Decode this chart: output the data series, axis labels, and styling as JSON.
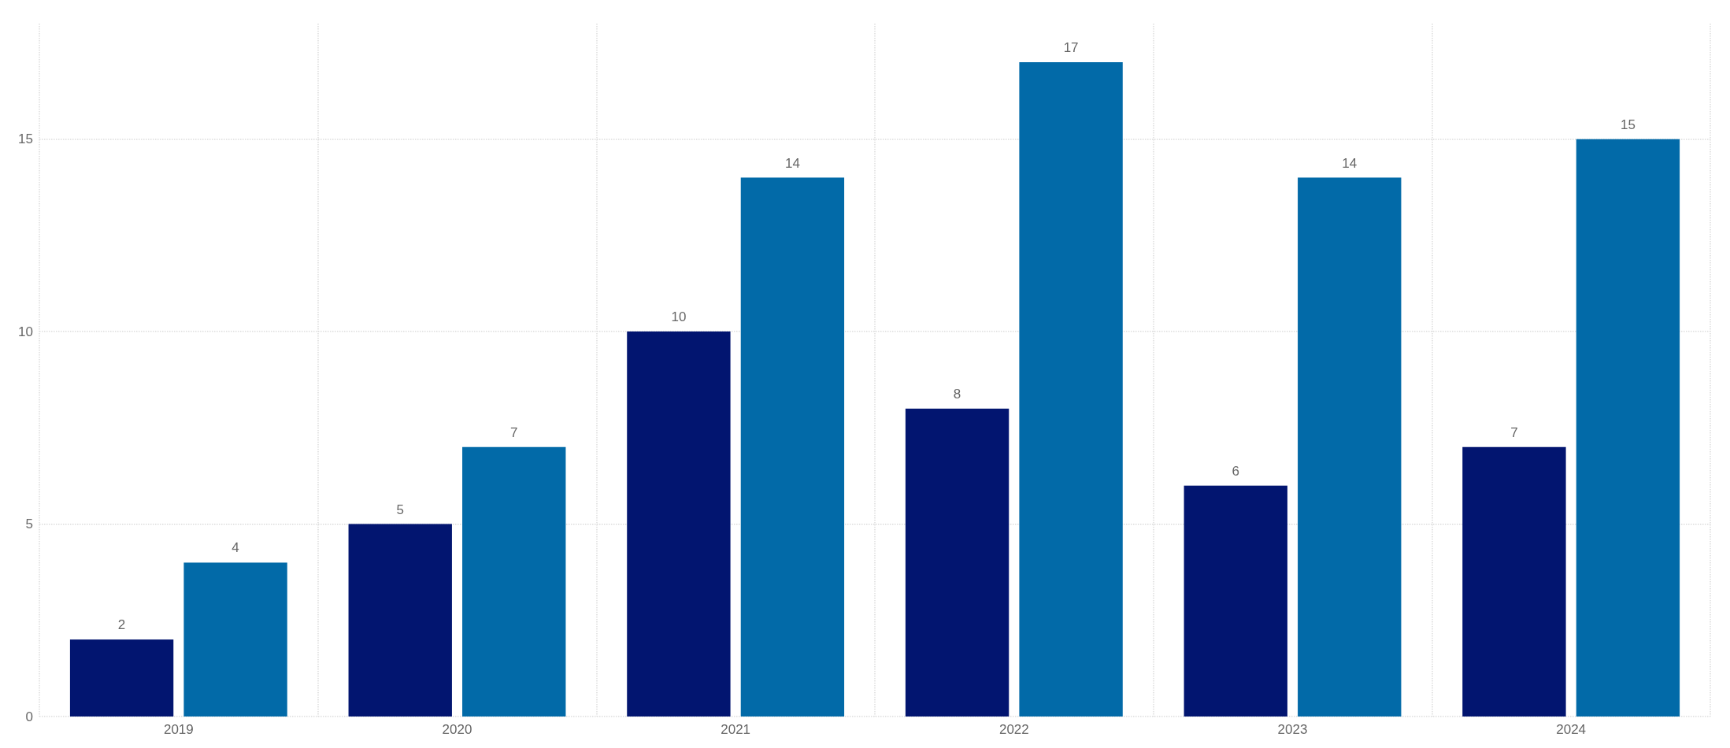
{
  "chart_data": {
    "type": "bar",
    "categories": [
      "2019",
      "2020",
      "2021",
      "2022",
      "2023",
      "2024"
    ],
    "series": [
      {
        "color": "#021570",
        "values": [
          2,
          5,
          10,
          8,
          6,
          7
        ]
      },
      {
        "color": "#026aa8",
        "values": [
          4,
          7,
          14,
          17,
          14,
          15
        ]
      }
    ],
    "ylim": [
      0,
      18
    ],
    "yticks": [
      0,
      5,
      10,
      15
    ],
    "grid": true,
    "data_labels": true
  }
}
